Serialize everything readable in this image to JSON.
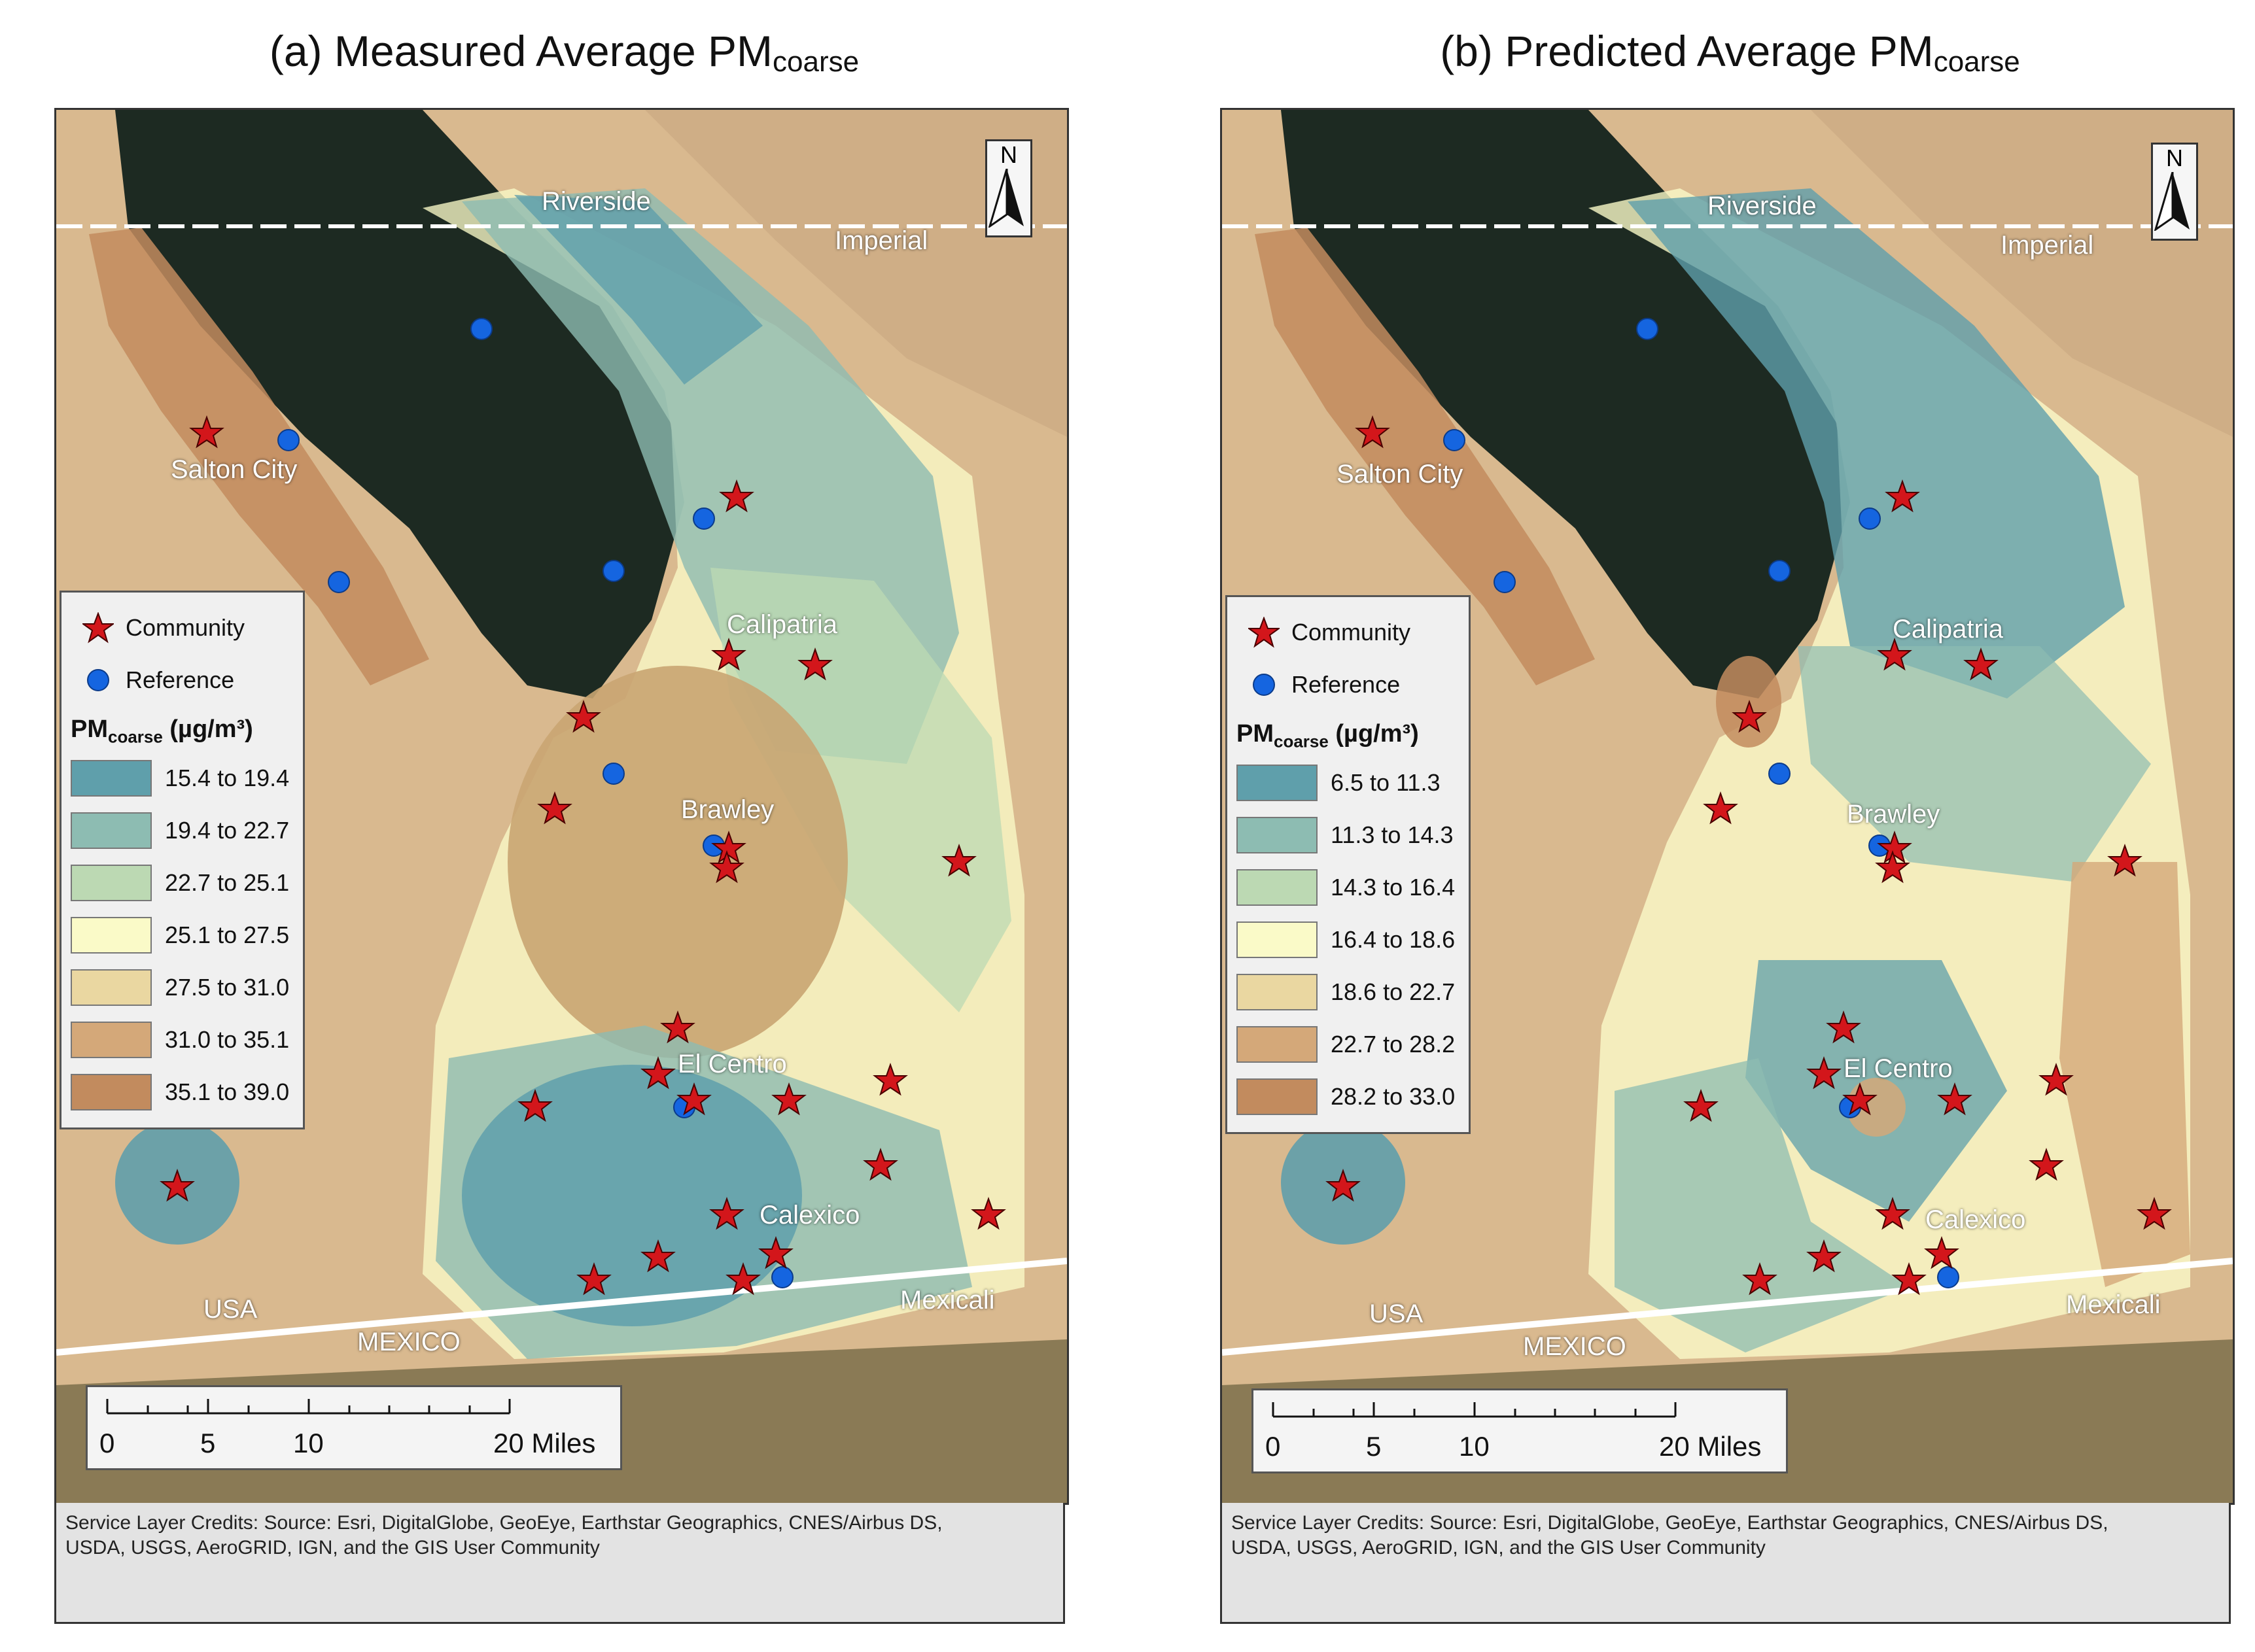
{
  "panels": [
    {
      "title_main": "(a) Measured Average PM",
      "title_sub": "coarse",
      "legend": {
        "community_label": "Community",
        "reference_label": "Reference",
        "pm_prefix": "PM",
        "pm_sub": "coarse",
        "pm_unit": " (µg/m³)",
        "classes": [
          "15.4 to 19.4",
          "19.4 to 22.7",
          "22.7 to 25.1",
          "25.1 to 27.5",
          "27.5 to 31.0",
          "31.0 to 35.1",
          "35.1 to 39.0"
        ]
      }
    },
    {
      "title_main": "(b) Predicted Average PM",
      "title_sub": "coarse",
      "legend": {
        "community_label": "Community",
        "reference_label": "Reference",
        "pm_prefix": "PM",
        "pm_sub": "coarse",
        "pm_unit": " (µg/m³)",
        "classes": [
          "6.5 to 11.3",
          "11.3 to 14.3",
          "14.3 to 16.4",
          "16.4 to 18.6",
          "18.6 to 22.7",
          "22.7 to 28.2",
          "28.2 to 33.0"
        ]
      }
    }
  ],
  "class_colors": [
    "#5f9fab",
    "#8dbcb2",
    "#bcd9b3",
    "#fafac8",
    "#ead7a1",
    "#d4a879",
    "#c28b5e"
  ],
  "map_labels": {
    "riverside": "Riverside",
    "imperial": "Imperial",
    "salton_city": "Salton City",
    "calipatria": "Calipatria",
    "brawley": "Brawley",
    "el_centro": "El Centro",
    "calexico": "Calexico",
    "usa": "USA",
    "mexico": "MEXICO",
    "mexicali": "Mexicali"
  },
  "north_label": "N",
  "scale": {
    "labels": [
      "0",
      "5",
      "10",
      "20 Miles"
    ]
  },
  "credits": {
    "line1": "Service Layer Credits:  Source: Esri, DigitalGlobe, GeoEye, Earthstar Geographics, CNES/Airbus DS,",
    "line2": "USDA, USGS, AeroGRID, IGN, and the GIS User Community"
  }
}
